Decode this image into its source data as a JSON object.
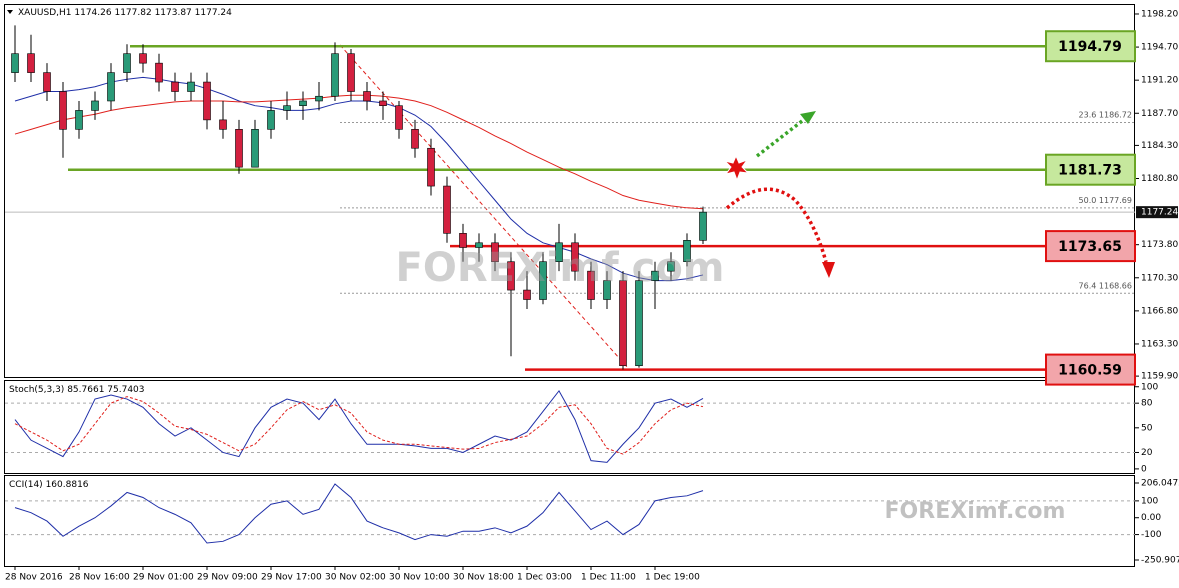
{
  "header": {
    "symbol": "XAUUSD,H1"
  },
  "watermark": "FOREXimf.com",
  "chart_data": [
    {
      "type": "candlestick",
      "categories": [
        "28 Nov 2016",
        null,
        null,
        null,
        "28 Nov 16:00",
        null,
        null,
        null,
        "29 Nov 01:00",
        null,
        null,
        null,
        "29 Nov 09:00",
        null,
        null,
        null,
        "29 Nov 17:00",
        null,
        null,
        null,
        "30 Nov 02:00",
        null,
        null,
        null,
        "30 Nov 10:00",
        null,
        null,
        null,
        "30 Nov 18:00",
        null,
        null,
        null,
        "1 Dec 03:00",
        null,
        null,
        null,
        "1 Dec 11:00",
        null,
        null,
        null,
        "1 Dec 19:00",
        null,
        null,
        null
      ],
      "open": [
        1192,
        1194,
        1192,
        1190,
        1186,
        1188,
        1189,
        1192,
        1194,
        1193,
        1191,
        1190,
        1191,
        1187,
        1186,
        1182,
        1186,
        1188,
        1188.5,
        1189,
        1189.5,
        1194,
        1190,
        1189,
        1188.5,
        1186,
        1184,
        1180,
        1175,
        1173.5,
        1174,
        1172,
        1169,
        1168,
        1172,
        1174,
        1171,
        1168,
        1170,
        1161,
        1170,
        1171,
        1172,
        1174.26
      ],
      "high": [
        1197,
        1196,
        1193,
        1191,
        1189,
        1190,
        1193,
        1195,
        1195,
        1194,
        1192,
        1192,
        1192,
        1189,
        1187,
        1187,
        1189,
        1190,
        1190,
        1191,
        1195.2,
        1194.5,
        1191,
        1190,
        1189,
        1187,
        1185,
        1181,
        1176,
        1175,
        1175,
        1173,
        1171,
        1173,
        1176,
        1175,
        1172,
        1171,
        1171,
        1171,
        1172,
        1173,
        1175,
        1177.82
      ],
      "low": [
        1191,
        1191,
        1189,
        1183,
        1185,
        1187,
        1188,
        1191,
        1192,
        1190,
        1189,
        1189,
        1186,
        1185,
        1181.3,
        1182,
        1185,
        1187,
        1187,
        1188,
        1189,
        1189,
        1188,
        1187,
        1185,
        1183,
        1179,
        1174,
        1172,
        1172,
        1171,
        1162,
        1167,
        1167.5,
        1171,
        1170,
        1167,
        1167,
        1160.6,
        1160.8,
        1167,
        1170,
        1171.5,
        1173.87
      ],
      "close": [
        1194,
        1192,
        1190,
        1186,
        1188,
        1189,
        1192,
        1194,
        1193,
        1191,
        1190,
        1191,
        1187,
        1186,
        1182,
        1186,
        1188,
        1188.5,
        1189,
        1189.5,
        1194,
        1190,
        1189,
        1188.5,
        1186,
        1184,
        1180,
        1175,
        1173.5,
        1174,
        1172,
        1169,
        1168,
        1172,
        1174,
        1171,
        1168,
        1170,
        1161,
        1170,
        1171,
        1172,
        1174.26,
        1177.24
      ],
      "up_color": "#2a9a78",
      "down_color": "#d3203f",
      "series": [
        {
          "color": "#1f2fa8",
          "values": [
            1189,
            1189.5,
            1190,
            1190,
            1190.2,
            1190.5,
            1191,
            1191.3,
            1191.5,
            1191.3,
            1191,
            1190.8,
            1190.3,
            1189.7,
            1189,
            1188.5,
            1188.3,
            1188,
            1188,
            1188.2,
            1188.7,
            1189,
            1189,
            1188.8,
            1188.3,
            1187.5,
            1186.3,
            1184.5,
            1182.5,
            1180.5,
            1178.5,
            1176.5,
            1175,
            1174,
            1173.5,
            1173,
            1172.3,
            1171.7,
            1170.8,
            1170.3,
            1170,
            1170,
            1170.2,
            1170.6
          ]
        },
        {
          "color": "#e0201c",
          "values": [
            1185.5,
            1186,
            1186.5,
            1187,
            1187.3,
            1187.6,
            1188,
            1188.3,
            1188.5,
            1188.7,
            1188.9,
            1189,
            1189,
            1189,
            1188.9,
            1188.9,
            1189,
            1189.1,
            1189.2,
            1189.3,
            1189.5,
            1189.6,
            1189.6,
            1189.5,
            1189.3,
            1189,
            1188.5,
            1187.8,
            1187,
            1186.2,
            1185.3,
            1184.5,
            1183.6,
            1182.8,
            1182,
            1181.3,
            1180.5,
            1179.8,
            1179,
            1178.5,
            1178.2,
            1177.9,
            1177.7,
            1177.6
          ]
        }
      ],
      "levels": [
        {
          "value": 1194.79,
          "color": "#6aa524",
          "fill": "#c6e89d"
        },
        {
          "value": 1181.73,
          "color": "#6aa524",
          "fill": "#c6e89d"
        },
        {
          "value": 1173.65,
          "color": "#e01010",
          "fill": "#f2a5aa"
        },
        {
          "value": 1160.59,
          "color": "#e01010",
          "fill": "#f2a5aa"
        }
      ],
      "fib": [
        {
          "ratio": "23.6",
          "value": 1186.72
        },
        {
          "ratio": "50.0",
          "value": 1177.69
        },
        {
          "ratio": "76.4",
          "value": 1168.66
        }
      ],
      "ylim": [
        1159.7,
        1199.15
      ],
      "yticks": [
        {
          "value": 1198.2,
          "label": "1198.20"
        },
        {
          "value": 1194.7,
          "label": "1194.70"
        },
        {
          "value": 1191.2,
          "label": "1191.20"
        },
        {
          "value": 1187.7,
          "label": "1187.70"
        },
        {
          "value": 1184.3,
          "label": "1184.30"
        },
        {
          "value": 1180.8,
          "label": "1180.80"
        },
        {
          "value": 1173.8,
          "label": "1173.80"
        },
        {
          "value": 1170.3,
          "label": "1170.30"
        },
        {
          "value": 1166.8,
          "label": "1166.80"
        },
        {
          "value": 1163.3,
          "label": "1163.30"
        },
        {
          "value": 1159.9,
          "label": "1159.90"
        }
      ]
    },
    {
      "type": "line",
      "title": "Stoch(5,3,3)",
      "series": [
        {
          "color": "#1f2fa8",
          "values": [
            60,
            35,
            25,
            15,
            45,
            85,
            90,
            85,
            75,
            55,
            40,
            50,
            35,
            20,
            15,
            50,
            75,
            85,
            80,
            60,
            85,
            55,
            30,
            30,
            30,
            28,
            25,
            25,
            20,
            30,
            40,
            35,
            45,
            70,
            95,
            60,
            10,
            8,
            30,
            50,
            80,
            85,
            75,
            85.7661
          ]
        },
        {
          "color": "#e0201c",
          "dashed": true,
          "values": [
            55,
            45,
            35,
            22,
            30,
            55,
            80,
            88,
            82,
            68,
            52,
            48,
            42,
            32,
            22,
            30,
            50,
            72,
            82,
            72,
            78,
            68,
            45,
            35,
            30,
            30,
            28,
            26,
            24,
            25,
            32,
            36,
            40,
            55,
            75,
            78,
            55,
            25,
            18,
            32,
            55,
            72,
            80,
            75.7403
          ]
        }
      ],
      "ylim": [
        -5,
        107
      ],
      "yticks": [
        100,
        80,
        50,
        20,
        0
      ]
    },
    {
      "type": "line",
      "title": "CCI(14)",
      "series": [
        {
          "color": "#1f2fa8",
          "values": [
            60,
            30,
            -20,
            -110,
            -50,
            0,
            70,
            150,
            120,
            60,
            20,
            -30,
            -150,
            -140,
            -100,
            0,
            80,
            100,
            20,
            50,
            200,
            120,
            -20,
            -60,
            -90,
            -130,
            -100,
            -110,
            -80,
            -80,
            -60,
            -90,
            -50,
            30,
            150,
            40,
            -70,
            -20,
            -100,
            -40,
            100,
            120,
            130,
            160.8816
          ]
        }
      ],
      "ylim": [
        -286.5,
        247.6
      ],
      "yticks": [
        206.0472,
        100,
        {
          "value": 0,
          "label": "0.00"
        },
        -100,
        -250.9074
      ]
    }
  ]
}
